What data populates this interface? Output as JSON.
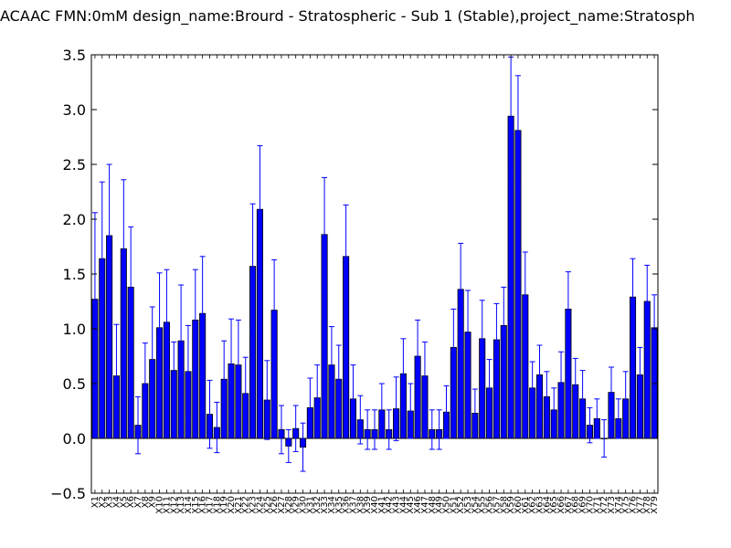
{
  "chart_data": {
    "type": "bar",
    "title": "ACAAC  FMN:0mM  design_name:Brourd - Stratospheric - Sub 1 (Stable),project_name:Stratosph",
    "ylim": [
      -0.5,
      3.5
    ],
    "yticks": [
      "−0.5",
      "0.0",
      "0.5",
      "1.0",
      "1.5",
      "2.0",
      "2.5",
      "3.0",
      "3.5"
    ],
    "yticks_values": [
      -0.5,
      0.0,
      0.5,
      1.0,
      1.5,
      2.0,
      2.5,
      3.0,
      3.5
    ],
    "grid": false,
    "bar_color": "#0000ff",
    "error_color": "#0000ff",
    "categories": [
      "X1",
      "X2",
      "X3",
      "X4",
      "X5",
      "X6",
      "X7",
      "X8",
      "X9",
      "X10",
      "X11",
      "X12",
      "X13",
      "X14",
      "X15",
      "X16",
      "X17",
      "X18",
      "X19",
      "X20",
      "X21",
      "X22",
      "X23",
      "X24",
      "X25",
      "X26",
      "X27",
      "X28",
      "X29",
      "X30",
      "X31",
      "X32",
      "X33",
      "X34",
      "X35",
      "X36",
      "X37",
      "X38",
      "X39",
      "X40",
      "X41",
      "X42",
      "X43",
      "X44",
      "X45",
      "X46",
      "X47",
      "X48",
      "X49",
      "X50",
      "X51",
      "X52",
      "X53",
      "X54",
      "X55",
      "X56",
      "X57",
      "X58",
      "X59",
      "X60",
      "X61",
      "X62",
      "X63",
      "X64",
      "X65",
      "X66",
      "X67",
      "X68",
      "X69",
      "X70",
      "X71",
      "X72",
      "X73",
      "X74",
      "X75",
      "X76",
      "X77",
      "X78",
      "X79"
    ],
    "values": [
      1.27,
      1.64,
      1.85,
      0.57,
      1.73,
      1.38,
      0.12,
      0.5,
      0.72,
      1.01,
      1.06,
      0.62,
      0.89,
      0.61,
      1.08,
      1.14,
      0.22,
      0.1,
      0.54,
      0.68,
      0.67,
      0.41,
      1.57,
      2.09,
      0.35,
      1.17,
      0.08,
      -0.07,
      0.09,
      -0.08,
      0.28,
      0.37,
      1.86,
      0.67,
      0.54,
      1.66,
      0.36,
      0.17,
      0.08,
      0.08,
      0.26,
      0.08,
      0.27,
      0.59,
      0.25,
      0.75,
      0.57,
      0.08,
      0.08,
      0.24,
      0.83,
      1.36,
      0.97,
      0.23,
      0.91,
      0.46,
      0.9,
      1.03,
      2.94,
      2.81,
      1.31,
      0.46,
      0.58,
      0.38,
      0.26,
      0.51,
      1.18,
      0.49,
      0.36,
      0.12,
      0.18,
      0.0,
      0.42,
      0.18,
      0.36,
      1.29,
      0.58,
      1.25,
      1.01
    ],
    "errors": [
      0.79,
      0.7,
      0.65,
      0.47,
      0.63,
      0.55,
      0.26,
      0.37,
      0.48,
      0.5,
      0.48,
      0.26,
      0.51,
      0.42,
      0.46,
      0.52,
      0.31,
      0.23,
      0.35,
      0.41,
      0.41,
      0.33,
      0.57,
      0.58,
      0.36,
      0.46,
      0.22,
      0.15,
      0.21,
      0.22,
      0.27,
      0.3,
      0.52,
      0.35,
      0.31,
      0.47,
      0.31,
      0.22,
      0.18,
      0.18,
      0.24,
      0.18,
      0.29,
      0.32,
      0.25,
      0.33,
      0.31,
      0.18,
      0.18,
      0.24,
      0.35,
      0.42,
      0.38,
      0.22,
      0.35,
      0.26,
      0.33,
      0.35,
      0.54,
      0.5,
      0.39,
      0.24,
      0.27,
      0.23,
      0.2,
      0.28,
      0.34,
      0.24,
      0.26,
      0.16,
      0.18,
      0.17,
      0.23,
      0.18,
      0.25,
      0.35,
      0.25,
      0.33,
      0.3
    ]
  }
}
